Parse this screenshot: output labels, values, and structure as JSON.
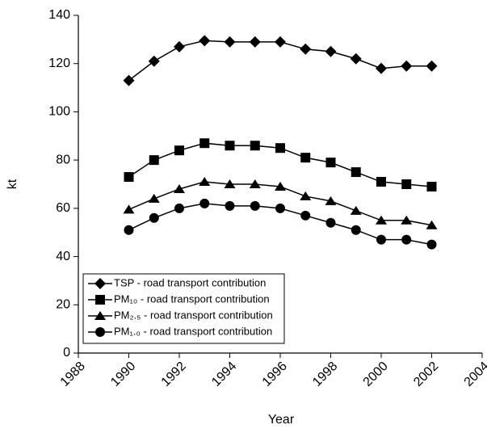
{
  "chart_data": {
    "type": "line",
    "x_label": "Year",
    "y_label": "kt",
    "x": [
      1990,
      1991,
      1992,
      1993,
      1994,
      1995,
      1996,
      1997,
      1998,
      1999,
      2000,
      2001,
      2002
    ],
    "series": [
      {
        "name": "TSP - road transport contribution",
        "color": "#000000",
        "marker": "diamond",
        "values": [
          113,
          121,
          127,
          129.5,
          129,
          129,
          129,
          126,
          125,
          122,
          118,
          119,
          119
        ]
      },
      {
        "name": "PM₁₀ - road transport contribution",
        "color": "#000000",
        "marker": "square",
        "values": [
          73,
          80,
          84,
          87,
          86,
          86,
          85,
          81,
          79,
          75,
          71,
          70,
          69
        ]
      },
      {
        "name": "PM₂.₅ - road transport contribution",
        "color": "#000000",
        "marker": "triangle",
        "values": [
          59.5,
          64,
          68,
          71,
          70,
          70,
          69,
          65,
          63,
          59,
          55,
          55,
          53
        ]
      },
      {
        "name": "PM₁.₀ - road transport contribution",
        "color": "#000000",
        "marker": "circle",
        "values": [
          51,
          56,
          60,
          62,
          61,
          61,
          60,
          57,
          54,
          51,
          47,
          47,
          45
        ]
      }
    ],
    "xlim": [
      1988,
      2004
    ],
    "xticks": [
      1988,
      1990,
      1992,
      1994,
      1996,
      1998,
      2000,
      2002,
      2004
    ],
    "ylim": [
      0,
      140
    ],
    "yticks": [
      0,
      20,
      40,
      60,
      80,
      100,
      120,
      140
    ],
    "grid": false,
    "legend": "lower left"
  }
}
